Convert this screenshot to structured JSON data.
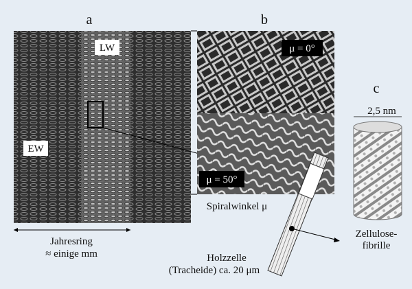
{
  "labels": {
    "a": "a",
    "b": "b",
    "c": "c"
  },
  "panel_a": {
    "lw": "LW",
    "ew": "EW",
    "ring_label": [
      "Jahresring",
      "≈ einige mm"
    ]
  },
  "panel_b": {
    "angle_top": "μ = 0°",
    "angle_bottom": "μ = 50°",
    "caption": "Spiralwinkel μ"
  },
  "cell": {
    "caption": [
      "Holzzelle",
      "(Tracheide) ca. 20 μm"
    ]
  },
  "panel_c": {
    "width": "2,5 nm",
    "caption": [
      "Zellulose-",
      "fibrille"
    ]
  }
}
